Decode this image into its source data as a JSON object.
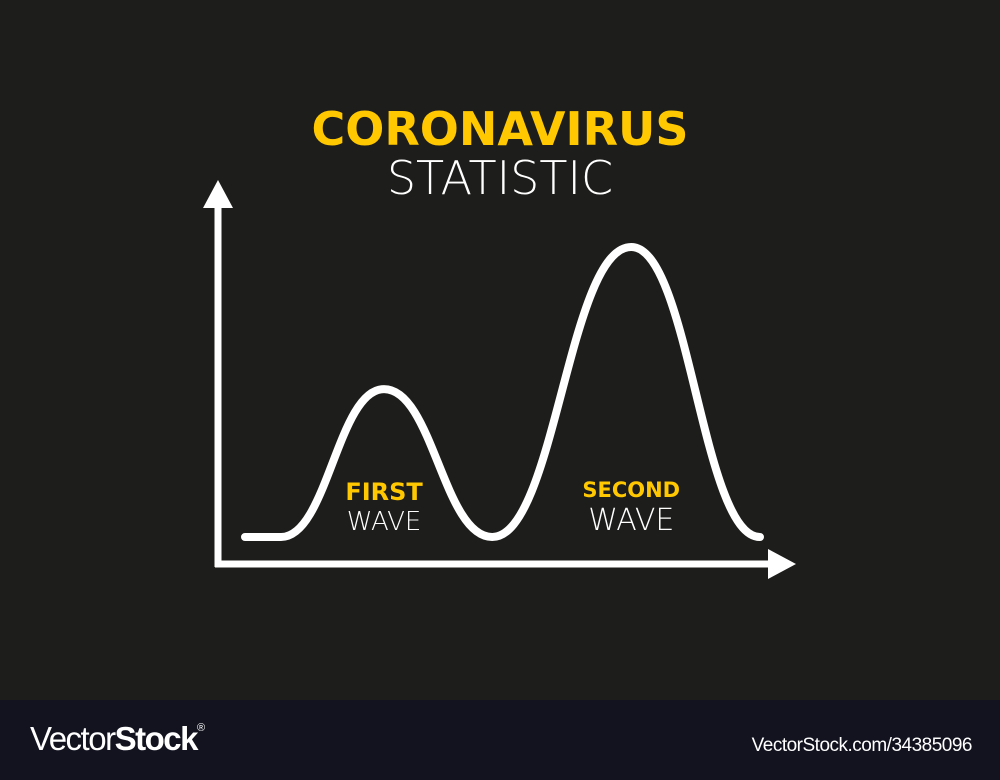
{
  "colors": {
    "background": "#1d1d1b",
    "accent": "#ffc800",
    "line": "#ffffff",
    "footer": "#12131f"
  },
  "chart_data": {
    "type": "line",
    "title": "CORONAVIRUS",
    "subtitle": "STATISTIC",
    "xlabel": "",
    "ylabel": "",
    "grid": false,
    "ticks": false,
    "xlim": [
      0,
      100
    ],
    "ylim": [
      0,
      100
    ],
    "series": [
      {
        "x": [
          0,
          7,
          27,
          48,
          75,
          100
        ],
        "y": [
          0,
          0,
          51,
          0,
          100,
          0
        ]
      }
    ],
    "annotations": [
      {
        "bold": "FIRST",
        "light": "WAVE",
        "x": 27
      },
      {
        "bold": "SECOND",
        "light": "WAVE",
        "x": 75
      }
    ]
  },
  "footer": {
    "logo_thin": "Vector",
    "logo_bold": "Stock",
    "logo_mark": "®",
    "image_id": "VectorStock.com/34385096"
  }
}
